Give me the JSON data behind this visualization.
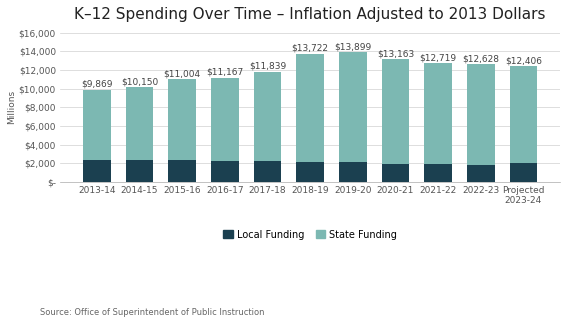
{
  "title": "K–12 Spending Over Time – Inflation Adjusted to 2013 Dollars",
  "categories": [
    "2013-14",
    "2014-15",
    "2015-16",
    "2016-17",
    "2017-18",
    "2018-19",
    "2019-20",
    "2020-21",
    "2021-22",
    "2022-23",
    "Projected\n2023-24"
  ],
  "totals": [
    9869,
    10150,
    11004,
    11167,
    11839,
    13722,
    13899,
    13163,
    12719,
    12628,
    12406
  ],
  "local_funding": [
    2350,
    2300,
    2350,
    2250,
    2200,
    2150,
    2100,
    1950,
    1900,
    1850,
    2000
  ],
  "local_color": "#1b4050",
  "state_color": "#7cb8b2",
  "ylabel": "Millions",
  "ylim": [
    0,
    16000
  ],
  "yticks": [
    0,
    2000,
    4000,
    6000,
    8000,
    10000,
    12000,
    14000,
    16000
  ],
  "ytick_labels": [
    "$-",
    "$2,000",
    "$4,000",
    "$6,000",
    "$8,000",
    "$10,000",
    "$12,000",
    "$14,000",
    "$16,000"
  ],
  "legend_local": "Local Funding",
  "legend_state": "State Funding",
  "source": "Source: Office of Superintendent of Public Instruction",
  "background_color": "#ffffff",
  "title_fontsize": 11,
  "label_fontsize": 6.5,
  "axis_fontsize": 6.5,
  "source_fontsize": 6,
  "bar_width": 0.65
}
